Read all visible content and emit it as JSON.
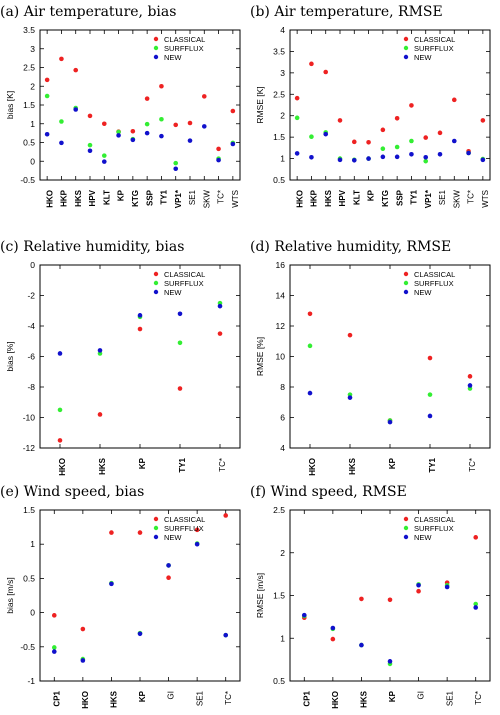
{
  "colors": {
    "CLASSICAL": "#ee2222",
    "SURFFLUX": "#33ee33",
    "NEW": "#1111cc"
  },
  "chart_data": [
    {
      "id": "a",
      "type": "scatter",
      "title": "(a) Air temperature, bias",
      "ylabel": "bias [K]",
      "ylim": [
        -0.5,
        3.5
      ],
      "yticks": [
        -0.5,
        0,
        0.5,
        1,
        1.5,
        2,
        2.5,
        3,
        3.5
      ],
      "categories": [
        "HKO",
        "HKP",
        "HKS",
        "HPV",
        "KLT",
        "KP",
        "KTG",
        "SSP",
        "TY1",
        "VP1*",
        "SE1",
        "SKW",
        "TC*",
        "WTS"
      ],
      "bold": [
        true,
        true,
        true,
        true,
        true,
        true,
        true,
        true,
        true,
        true,
        false,
        false,
        false,
        false
      ],
      "legend": "top-right",
      "series": [
        {
          "name": "CLASSICAL",
          "values": [
            2.17,
            2.73,
            2.43,
            1.21,
            1.0,
            0.79,
            0.8,
            1.67,
            2.0,
            0.97,
            1.02,
            1.73,
            0.33,
            1.34
          ]
        },
        {
          "name": "SURFFLUX",
          "values": [
            1.74,
            1.06,
            1.42,
            0.43,
            0.15,
            0.78,
            0.59,
            0.99,
            1.12,
            -0.05,
            null,
            null,
            0.07,
            0.49
          ]
        },
        {
          "name": "NEW",
          "values": [
            0.72,
            0.49,
            1.38,
            0.28,
            -0.01,
            0.69,
            0.57,
            0.75,
            0.67,
            -0.2,
            0.55,
            0.93,
            0.03,
            0.46
          ]
        }
      ]
    },
    {
      "id": "b",
      "type": "scatter",
      "title": "(b) Air temperature, RMSE",
      "ylabel": "RMSE [K]",
      "ylim": [
        0.5,
        4
      ],
      "yticks": [
        0.5,
        1,
        1.5,
        2,
        2.5,
        3,
        3.5,
        4
      ],
      "categories": [
        "HKO",
        "HKP",
        "HKS",
        "HPV",
        "KLT",
        "KP",
        "KTG",
        "SSP",
        "TY1",
        "VP1*",
        "SE1",
        "SKW",
        "TC*",
        "WTS"
      ],
      "bold": [
        true,
        true,
        true,
        true,
        true,
        true,
        true,
        true,
        true,
        true,
        false,
        false,
        false,
        false
      ],
      "legend": "top-right",
      "series": [
        {
          "name": "CLASSICAL",
          "values": [
            2.41,
            3.21,
            3.02,
            1.89,
            1.39,
            1.38,
            1.67,
            1.94,
            2.24,
            1.49,
            1.6,
            2.37,
            1.17,
            1.89
          ]
        },
        {
          "name": "SURFFLUX",
          "values": [
            1.95,
            1.51,
            1.61,
            1.0,
            0.97,
            1.0,
            1.23,
            1.27,
            1.41,
            0.94,
            null,
            null,
            1.13,
            0.99
          ]
        },
        {
          "name": "NEW",
          "values": [
            1.12,
            1.03,
            1.57,
            0.97,
            0.96,
            1.0,
            1.04,
            1.04,
            1.1,
            1.03,
            1.1,
            1.41,
            1.13,
            0.97
          ]
        }
      ]
    },
    {
      "id": "c",
      "type": "scatter",
      "title": "(c) Relative humidity, bias",
      "ylabel": "bias [%]",
      "ylim": [
        -12,
        0
      ],
      "yticks": [
        -12,
        -10,
        -8,
        -6,
        -4,
        -2,
        0
      ],
      "categories": [
        "HKO",
        "HKS",
        "KP",
        "TY1",
        "TC*"
      ],
      "bold": [
        true,
        true,
        true,
        true,
        false
      ],
      "legend": "top-right",
      "series": [
        {
          "name": "CLASSICAL",
          "values": [
            -11.5,
            -9.8,
            -4.2,
            -8.1,
            -4.5
          ]
        },
        {
          "name": "SURFFLUX",
          "values": [
            -9.5,
            -5.8,
            -3.4,
            -5.1,
            -2.5
          ]
        },
        {
          "name": "NEW",
          "values": [
            -5.8,
            -5.6,
            -3.3,
            -3.2,
            -2.7
          ]
        }
      ]
    },
    {
      "id": "d",
      "type": "scatter",
      "title": "(d) Relative humidity, RMSE",
      "ylabel": "RMSE [%]",
      "ylim": [
        4,
        16
      ],
      "yticks": [
        4,
        6,
        8,
        10,
        12,
        14,
        16
      ],
      "categories": [
        "HKO",
        "HKS",
        "KP",
        "TY1",
        "TC*"
      ],
      "bold": [
        true,
        true,
        true,
        true,
        false
      ],
      "legend": "top-right",
      "series": [
        {
          "name": "CLASSICAL",
          "values": [
            12.8,
            11.4,
            5.8,
            9.9,
            8.7
          ]
        },
        {
          "name": "SURFFLUX",
          "values": [
            10.7,
            7.5,
            5.8,
            7.5,
            7.9
          ]
        },
        {
          "name": "NEW",
          "values": [
            7.6,
            7.3,
            5.7,
            6.1,
            8.1
          ]
        }
      ]
    },
    {
      "id": "e",
      "type": "scatter",
      "title": "(e) Wind speed, bias",
      "ylabel": "bias [m/s]",
      "ylim": [
        -1,
        1.5
      ],
      "yticks": [
        -1,
        -0.5,
        0,
        0.5,
        1,
        1.5
      ],
      "categories": [
        "CP1",
        "HKO",
        "HKS",
        "KP",
        "GI",
        "SE1",
        "TC*"
      ],
      "bold": [
        true,
        true,
        true,
        true,
        false,
        false,
        false
      ],
      "legend": "top-right",
      "series": [
        {
          "name": "CLASSICAL",
          "values": [
            -0.04,
            -0.24,
            1.17,
            1.17,
            0.51,
            1.21,
            1.42
          ]
        },
        {
          "name": "SURFFLUX",
          "values": [
            -0.51,
            -0.68,
            0.43,
            -0.3,
            0.69,
            1.01,
            -0.33
          ]
        },
        {
          "name": "NEW",
          "values": [
            -0.57,
            -0.7,
            0.42,
            -0.31,
            0.69,
            1.0,
            -0.33
          ]
        }
      ]
    },
    {
      "id": "f",
      "type": "scatter",
      "title": "(f) Wind speed, RMSE",
      "ylabel": "RMSE [m/s]",
      "ylim": [
        0.5,
        2.5
      ],
      "yticks": [
        0.5,
        1,
        1.5,
        2,
        2.5
      ],
      "categories": [
        "CP1",
        "HKO",
        "HKS",
        "KP",
        "GI",
        "SE1",
        "TC*"
      ],
      "bold": [
        true,
        true,
        true,
        true,
        false,
        false,
        false
      ],
      "legend": "top-right",
      "series": [
        {
          "name": "CLASSICAL",
          "values": [
            1.24,
            0.99,
            1.46,
            1.45,
            1.55,
            1.65,
            2.18
          ]
        },
        {
          "name": "SURFFLUX",
          "values": [
            1.26,
            1.11,
            0.92,
            0.7,
            1.63,
            1.62,
            1.4
          ]
        },
        {
          "name": "NEW",
          "values": [
            1.27,
            1.12,
            0.92,
            0.73,
            1.62,
            1.6,
            1.36
          ]
        }
      ]
    }
  ]
}
